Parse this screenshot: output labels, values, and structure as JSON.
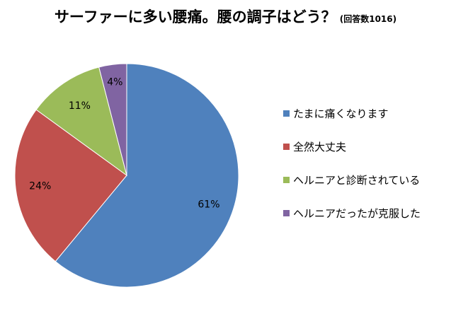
{
  "chart_data": {
    "type": "pie",
    "title": "サーファーに多い腰痛。腰の調子はどう？",
    "subtitle": "(回答数1016)",
    "categories": [
      "たまに痛くなります",
      "全然大丈夫",
      "ヘルニアと診断されている",
      "ヘルニアだったが克服した"
    ],
    "values": [
      61,
      24,
      11,
      4
    ],
    "data_labels": [
      "61%",
      "24%",
      "11%",
      "4%"
    ],
    "colors": [
      "#4f81bd",
      "#c0504d",
      "#9bbb59",
      "#8064a2"
    ],
    "legend_position": "right"
  }
}
